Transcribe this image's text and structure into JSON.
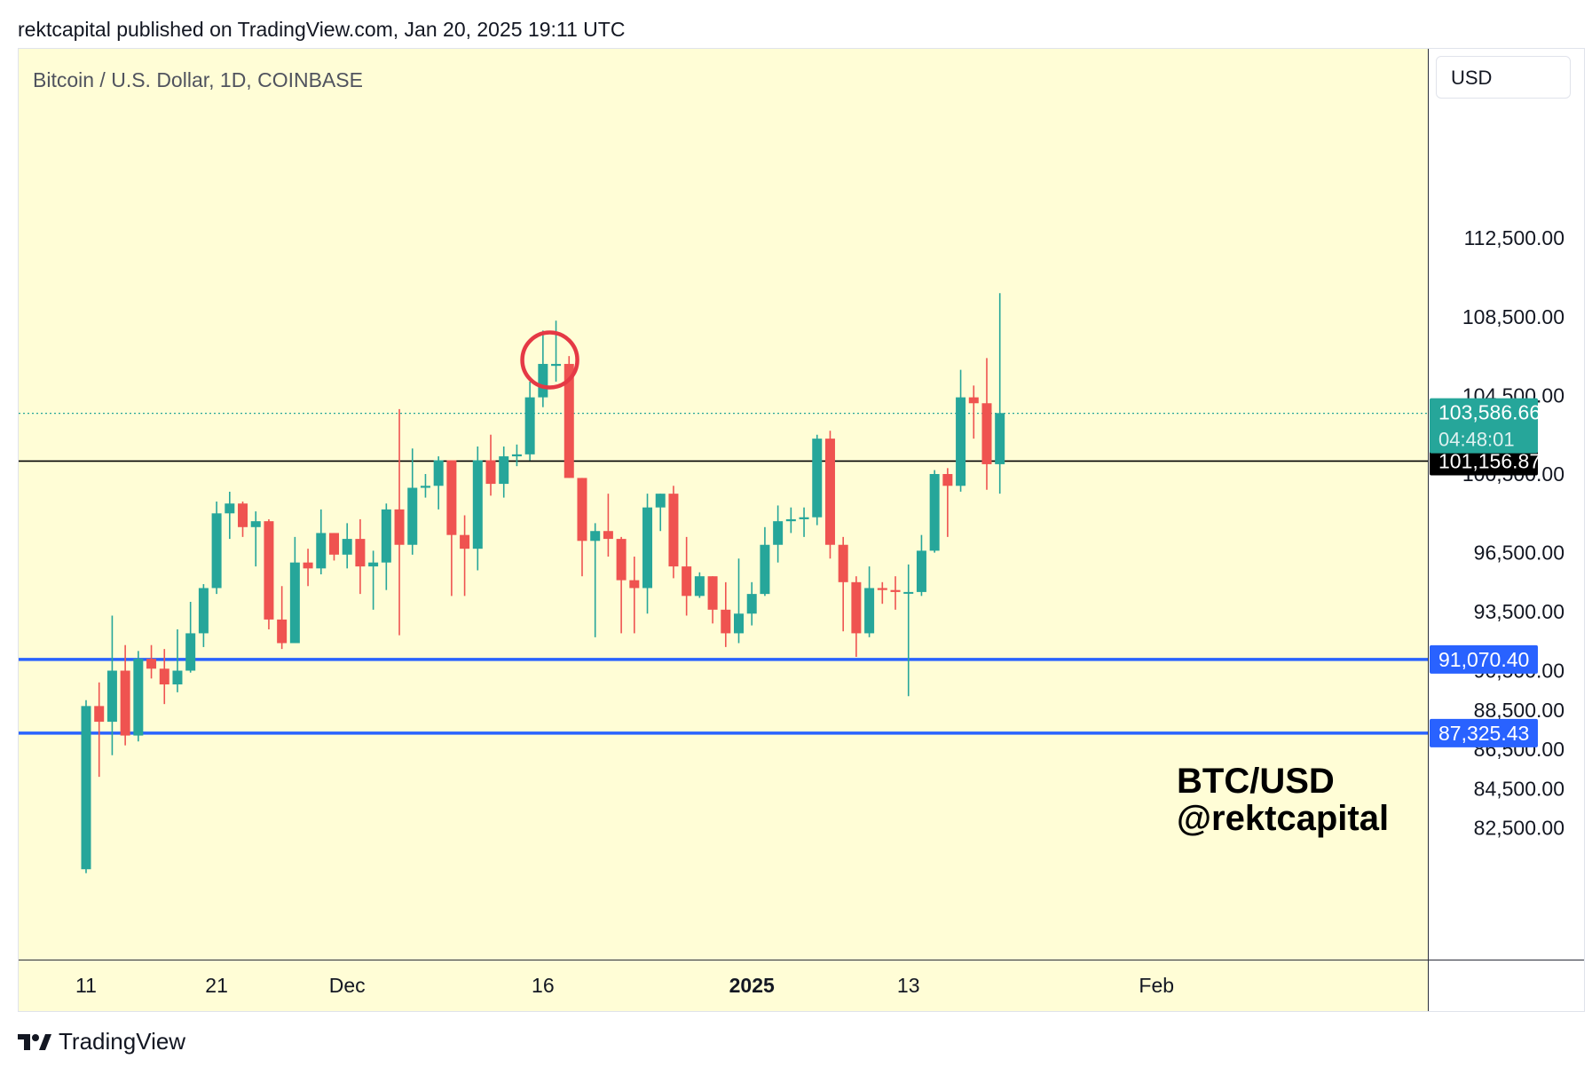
{
  "header": {
    "published_text": "rektcapital published on TradingView.com, Jan 20, 2025 19:11 UTC"
  },
  "chart": {
    "symbol_title": "Bitcoin / U.S. Dollar, 1D, COINBASE",
    "currency_label": "USD",
    "watermark_line1": "BTC/USD",
    "watermark_line2": "@rektcapital"
  },
  "footer": {
    "brand": "TradingView"
  },
  "colors": {
    "up": "#26a69a",
    "down": "#ef5350",
    "background": "#fffdd6",
    "level_line": "#2962ff",
    "circle": "#e53945"
  },
  "chart_data": {
    "type": "candlestick",
    "title": "Bitcoin / U.S. Dollar, 1D, COINBASE",
    "y_ticks": [
      "112,500.00",
      "108,500.00",
      "104,500.00",
      "100,500.00",
      "96,500.00",
      "93,500.00",
      "90,500.00",
      "88,500.00",
      "86,500.00",
      "84,500.00",
      "82,500.00"
    ],
    "x_ticks": [
      "11",
      "21",
      "Dec",
      "16",
      "2025",
      "13",
      "Feb"
    ],
    "horizontal_levels": [
      {
        "value": 101156.87,
        "label": "101,156.87",
        "color": "#000000"
      },
      {
        "value": 91070.4,
        "label": "91,070.40",
        "color": "#2962ff"
      },
      {
        "value": 87325.43,
        "label": "87,325.43",
        "color": "#2962ff"
      }
    ],
    "last_price": {
      "value": 103586.66,
      "label": "103,586.66",
      "countdown": "04:48:01"
    },
    "annotation": {
      "type": "circle",
      "date": "Dec 17"
    },
    "candles": [
      {
        "date": "Nov 11",
        "open": 80400,
        "high": 89000,
        "low": 80200,
        "close": 88700
      },
      {
        "date": "Nov 12",
        "open": 88700,
        "high": 89900,
        "low": 85100,
        "close": 87900
      },
      {
        "date": "Nov 13",
        "open": 87900,
        "high": 93300,
        "low": 86200,
        "close": 90500
      },
      {
        "date": "Nov 14",
        "open": 90500,
        "high": 91800,
        "low": 86700,
        "close": 87200
      },
      {
        "date": "Nov 15",
        "open": 87200,
        "high": 91500,
        "low": 86900,
        "close": 91100
      },
      {
        "date": "Nov 16",
        "open": 91100,
        "high": 91800,
        "low": 90100,
        "close": 90600
      },
      {
        "date": "Nov 17",
        "open": 90600,
        "high": 91600,
        "low": 88800,
        "close": 89800
      },
      {
        "date": "Nov 18",
        "open": 89800,
        "high": 92600,
        "low": 89400,
        "close": 90500
      },
      {
        "date": "Nov 19",
        "open": 90500,
        "high": 94000,
        "low": 90400,
        "close": 92400
      },
      {
        "date": "Nov 20",
        "open": 92400,
        "high": 94900,
        "low": 91700,
        "close": 94700
      },
      {
        "date": "Nov 21",
        "open": 94700,
        "high": 99100,
        "low": 94400,
        "close": 98500
      },
      {
        "date": "Nov 22",
        "open": 98500,
        "high": 99600,
        "low": 97200,
        "close": 99000
      },
      {
        "date": "Nov 23",
        "open": 99000,
        "high": 99100,
        "low": 97300,
        "close": 97800
      },
      {
        "date": "Nov 24",
        "open": 97800,
        "high": 98600,
        "low": 95800,
        "close": 98100
      },
      {
        "date": "Nov 25",
        "open": 98100,
        "high": 98200,
        "low": 92600,
        "close": 93100
      },
      {
        "date": "Nov 26",
        "open": 93100,
        "high": 94800,
        "low": 91600,
        "close": 91900
      },
      {
        "date": "Nov 27",
        "open": 91900,
        "high": 97300,
        "low": 91900,
        "close": 96000
      },
      {
        "date": "Nov 28",
        "open": 96000,
        "high": 96700,
        "low": 94800,
        "close": 95700
      },
      {
        "date": "Nov 29",
        "open": 95700,
        "high": 98700,
        "low": 95400,
        "close": 97500
      },
      {
        "date": "Nov 30",
        "open": 97500,
        "high": 97500,
        "low": 96100,
        "close": 96400
      },
      {
        "date": "Dec 1",
        "open": 96400,
        "high": 98000,
        "low": 95700,
        "close": 97200
      },
      {
        "date": "Dec 2",
        "open": 97200,
        "high": 98200,
        "low": 94400,
        "close": 95800
      },
      {
        "date": "Dec 3",
        "open": 95800,
        "high": 96600,
        "low": 93600,
        "close": 96000
      },
      {
        "date": "Dec 4",
        "open": 96000,
        "high": 99000,
        "low": 94600,
        "close": 98700
      },
      {
        "date": "Dec 5",
        "open": 98700,
        "high": 103800,
        "low": 92300,
        "close": 96900
      },
      {
        "date": "Dec 6",
        "open": 96900,
        "high": 101800,
        "low": 96400,
        "close": 99800
      },
      {
        "date": "Dec 7",
        "open": 99800,
        "high": 100500,
        "low": 99300,
        "close": 99900
      },
      {
        "date": "Dec 8",
        "open": 99900,
        "high": 101400,
        "low": 98700,
        "close": 101200
      },
      {
        "date": "Dec 9",
        "open": 101200,
        "high": 101200,
        "low": 94300,
        "close": 97400
      },
      {
        "date": "Dec 10",
        "open": 97400,
        "high": 98400,
        "low": 94300,
        "close": 96700
      },
      {
        "date": "Dec 11",
        "open": 96700,
        "high": 101900,
        "low": 95600,
        "close": 101200
      },
      {
        "date": "Dec 12",
        "open": 101200,
        "high": 102500,
        "low": 99400,
        "close": 100000
      },
      {
        "date": "Dec 13",
        "open": 100000,
        "high": 101900,
        "low": 99300,
        "close": 101400
      },
      {
        "date": "Dec 14",
        "open": 101400,
        "high": 102000,
        "low": 100900,
        "close": 101500
      },
      {
        "date": "Dec 15",
        "open": 101500,
        "high": 105200,
        "low": 101200,
        "close": 104400
      },
      {
        "date": "Dec 16",
        "open": 104400,
        "high": 107800,
        "low": 103900,
        "close": 106100
      },
      {
        "date": "Dec 17",
        "open": 106000,
        "high": 108300,
        "low": 105200,
        "close": 106100
      },
      {
        "date": "Dec 18",
        "open": 106100,
        "high": 106500,
        "low": 100300,
        "close": 100300
      },
      {
        "date": "Dec 19",
        "open": 100300,
        "high": 100300,
        "low": 95300,
        "close": 97100
      },
      {
        "date": "Dec 20",
        "open": 97100,
        "high": 98000,
        "low": 92200,
        "close": 97600
      },
      {
        "date": "Dec 21",
        "open": 97600,
        "high": 99500,
        "low": 96300,
        "close": 97200
      },
      {
        "date": "Dec 22",
        "open": 97200,
        "high": 97300,
        "low": 92400,
        "close": 95100
      },
      {
        "date": "Dec 23",
        "open": 95100,
        "high": 96300,
        "low": 92400,
        "close": 94700
      },
      {
        "date": "Dec 24",
        "open": 94700,
        "high": 99500,
        "low": 93400,
        "close": 98800
      },
      {
        "date": "Dec 25",
        "open": 98800,
        "high": 99500,
        "low": 97600,
        "close": 99500
      },
      {
        "date": "Dec 26",
        "open": 99500,
        "high": 99900,
        "low": 95200,
        "close": 95800
      },
      {
        "date": "Dec 27",
        "open": 95800,
        "high": 97300,
        "low": 93300,
        "close": 94300
      },
      {
        "date": "Dec 28",
        "open": 94300,
        "high": 95500,
        "low": 94200,
        "close": 95300
      },
      {
        "date": "Dec 29",
        "open": 95300,
        "high": 95300,
        "low": 92900,
        "close": 93600
      },
      {
        "date": "Dec 30",
        "open": 93600,
        "high": 95000,
        "low": 91700,
        "close": 92400
      },
      {
        "date": "Dec 31",
        "open": 92400,
        "high": 96200,
        "low": 91900,
        "close": 93400
      },
      {
        "date": "Jan 1",
        "open": 93400,
        "high": 95000,
        "low": 92800,
        "close": 94400
      },
      {
        "date": "Jan 2",
        "open": 94400,
        "high": 97800,
        "low": 94300,
        "close": 96900
      },
      {
        "date": "Jan 3",
        "open": 96900,
        "high": 98900,
        "low": 96000,
        "close": 98100
      },
      {
        "date": "Jan 4",
        "open": 98100,
        "high": 98800,
        "low": 97500,
        "close": 98200
      },
      {
        "date": "Jan 5",
        "open": 98200,
        "high": 98800,
        "low": 97300,
        "close": 98300
      },
      {
        "date": "Jan 6",
        "open": 98300,
        "high": 102500,
        "low": 97900,
        "close": 102300
      },
      {
        "date": "Jan 7",
        "open": 102300,
        "high": 102700,
        "low": 96200,
        "close": 96900
      },
      {
        "date": "Jan 8",
        "open": 96900,
        "high": 97300,
        "low": 92500,
        "close": 95000
      },
      {
        "date": "Jan 9",
        "open": 95000,
        "high": 95300,
        "low": 91200,
        "close": 92400
      },
      {
        "date": "Jan 10",
        "open": 92400,
        "high": 95800,
        "low": 92200,
        "close": 94700
      },
      {
        "date": "Jan 11",
        "open": 94700,
        "high": 95000,
        "low": 93900,
        "close": 94600
      },
      {
        "date": "Jan 12",
        "open": 94600,
        "high": 95300,
        "low": 93600,
        "close": 94500
      },
      {
        "date": "Jan 13",
        "open": 94500,
        "high": 95900,
        "low": 89200,
        "close": 94500
      },
      {
        "date": "Jan 14",
        "open": 94500,
        "high": 97400,
        "low": 94300,
        "close": 96600
      },
      {
        "date": "Jan 15",
        "open": 96600,
        "high": 100700,
        "low": 96500,
        "close": 100500
      },
      {
        "date": "Jan 16",
        "open": 100500,
        "high": 100800,
        "low": 97300,
        "close": 99900
      },
      {
        "date": "Jan 17",
        "open": 99900,
        "high": 105800,
        "low": 99600,
        "close": 104400
      },
      {
        "date": "Jan 18",
        "open": 104400,
        "high": 105000,
        "low": 102300,
        "close": 104100
      },
      {
        "date": "Jan 19",
        "open": 104100,
        "high": 106400,
        "low": 99700,
        "close": 101000
      },
      {
        "date": "Jan 20",
        "open": 101000,
        "high": 109700,
        "low": 99500,
        "close": 103600
      }
    ]
  }
}
